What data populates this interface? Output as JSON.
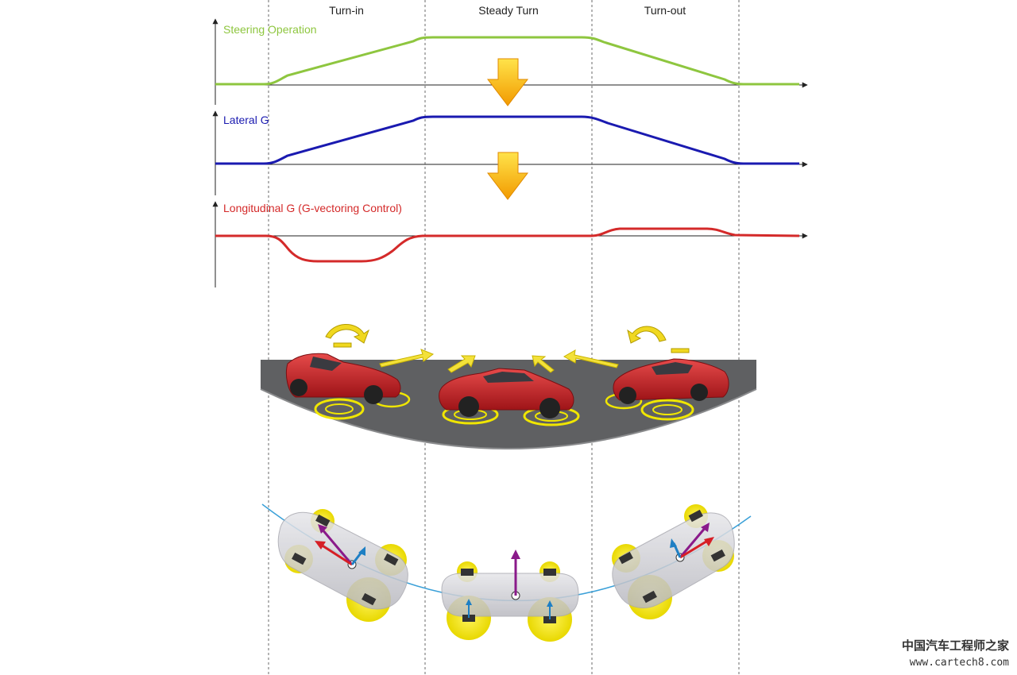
{
  "phases": [
    "Turn-in",
    "Steady Turn",
    "Turn-out"
  ],
  "charts": [
    {
      "label": "Steering Operation",
      "color": "#8ec63f"
    },
    {
      "label": "Lateral G",
      "color": "#1a1ab0"
    },
    {
      "label": "Longitudinal G (G-vectoring Control)",
      "color": "#d42a2a"
    }
  ],
  "colors": {
    "divider": "#666666",
    "axis": "#222222",
    "arrow_yellow": "#f7b500",
    "road": "#5f6062",
    "car_red": "#c8232c",
    "tire_glow": "#f0e600",
    "vector_red": "#d61f26",
    "vector_purple": "#8a1a8a",
    "vector_blue": "#1e7fc4",
    "path_blue": "#3aa0d8"
  },
  "icons": [
    "down-arrow-icon",
    "car-icon",
    "rotation-arrow-icon",
    "wheel-icon",
    "vector-arrow-icon"
  ],
  "watermark": {
    "chinese": "中国汽车工程师之家",
    "url": "www.cartech8.com"
  }
}
